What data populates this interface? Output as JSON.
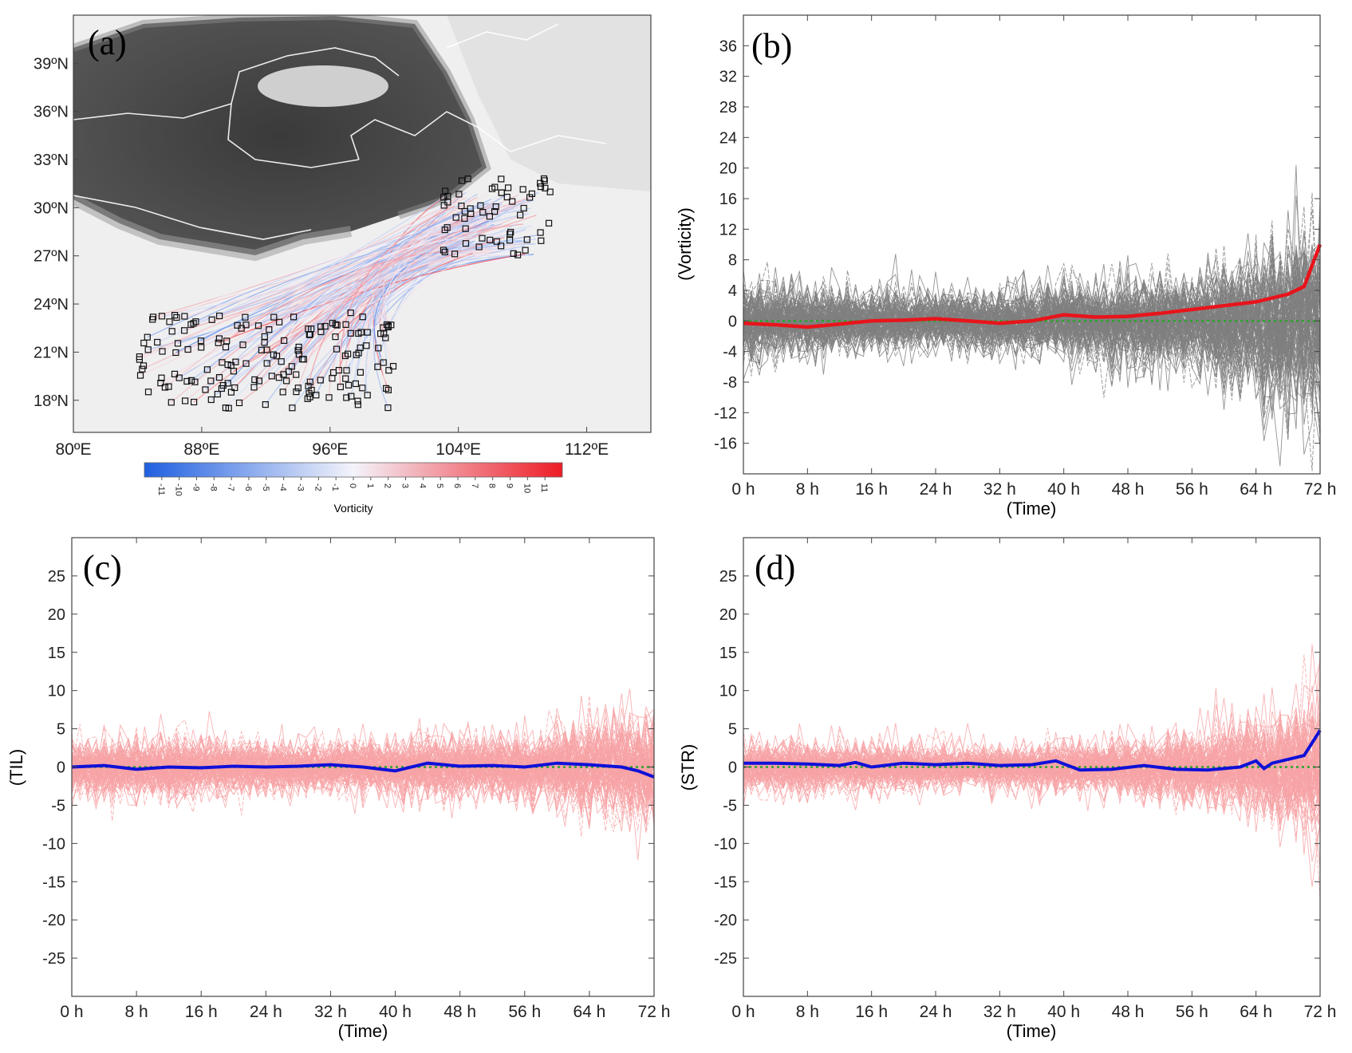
{
  "chart_data": [
    {
      "panel_id": "a",
      "type": "map",
      "panel_label": "(a)",
      "x_ticks": [
        "80ºE",
        "88ºE",
        "96ºE",
        "104ºE",
        "112ºE"
      ],
      "x_tick_values": [
        80,
        88,
        96,
        104,
        112
      ],
      "y_ticks": [
        "39ºN",
        "36ºN",
        "33ºN",
        "30ºN",
        "27ºN",
        "24ºN",
        "21ºN",
        "18ºN"
      ],
      "y_tick_values": [
        39,
        36,
        33,
        30,
        27,
        24,
        21,
        18
      ],
      "lon_range": [
        80,
        116
      ],
      "lat_range": [
        16,
        42
      ],
      "colorbar": {
        "label": "Vorticity",
        "ticks": [
          "-11",
          "-10",
          "-9",
          "-8",
          "-7",
          "-6",
          "-5",
          "-4",
          "-3",
          "-2",
          "-1",
          "0",
          "1",
          "2",
          "3",
          "4",
          "5",
          "6",
          "7",
          "8",
          "9",
          "10",
          "11"
        ],
        "range": [
          -12,
          12
        ],
        "neg_color": "#1f5fe0",
        "pos_color": "#ee1c25"
      }
    },
    {
      "panel_id": "b",
      "type": "line",
      "panel_label": "(b)",
      "xlabel": "(Time)",
      "ylabel": "(Vorticity)",
      "x_ticks": [
        "0 h",
        "8 h",
        "16 h",
        "24 h",
        "32 h",
        "40 h",
        "48 h",
        "56 h",
        "64 h",
        "72 h"
      ],
      "x_tick_values": [
        0,
        8,
        16,
        24,
        32,
        40,
        48,
        56,
        64,
        72
      ],
      "y_ticks": [
        "36",
        "32",
        "28",
        "24",
        "20",
        "16",
        "12",
        "8",
        "4",
        "0",
        "-4",
        "-8",
        "-12",
        "-16"
      ],
      "y_tick_values": [
        36,
        32,
        28,
        24,
        20,
        16,
        12,
        8,
        4,
        0,
        -4,
        -8,
        -12,
        -16
      ],
      "xlim": [
        0,
        72
      ],
      "ylim": [
        -20,
        40
      ],
      "ensemble_color": "#7f7f7f",
      "mean_color": "#e8141b",
      "zero_color": "#2aa52a",
      "mean": {
        "x": [
          0,
          4,
          8,
          12,
          16,
          20,
          24,
          28,
          32,
          36,
          40,
          44,
          48,
          52,
          56,
          60,
          64,
          68,
          70,
          72
        ],
        "y": [
          -0.3,
          -0.5,
          -0.8,
          -0.4,
          0.0,
          0.1,
          0.3,
          0.0,
          -0.3,
          0.0,
          0.8,
          0.5,
          0.6,
          1.0,
          1.5,
          2.0,
          2.5,
          3.5,
          4.5,
          10.0
        ]
      }
    },
    {
      "panel_id": "c",
      "type": "line",
      "panel_label": "(c)",
      "xlabel": "(Time)",
      "ylabel": "(TIL)",
      "x_ticks": [
        "0 h",
        "8 h",
        "16 h",
        "24 h",
        "32 h",
        "40 h",
        "48 h",
        "56 h",
        "64 h",
        "72 h"
      ],
      "x_tick_values": [
        0,
        8,
        16,
        24,
        32,
        40,
        48,
        56,
        64,
        72
      ],
      "y_ticks": [
        "25",
        "20",
        "15",
        "10",
        "5",
        "0",
        "-5",
        "-10",
        "-15",
        "-20",
        "-25"
      ],
      "y_tick_values": [
        25,
        20,
        15,
        10,
        5,
        0,
        -5,
        -10,
        -15,
        -20,
        -25
      ],
      "xlim": [
        0,
        72
      ],
      "ylim": [
        -30,
        30
      ],
      "ensemble_color": "#f7a3a6",
      "mean_color": "#1010d8",
      "zero_color": "#2aa52a",
      "mean": {
        "x": [
          0,
          4,
          8,
          12,
          16,
          20,
          24,
          28,
          32,
          36,
          40,
          44,
          48,
          52,
          56,
          60,
          64,
          68,
          70,
          72
        ],
        "y": [
          0.0,
          0.2,
          -0.3,
          0.0,
          -0.1,
          0.1,
          0.0,
          0.1,
          0.3,
          0.0,
          -0.5,
          0.5,
          0.1,
          0.2,
          0.0,
          0.5,
          0.3,
          0.0,
          -0.5,
          -1.3
        ]
      }
    },
    {
      "panel_id": "d",
      "type": "line",
      "panel_label": "(d)",
      "xlabel": "(Time)",
      "ylabel": "(STR)",
      "x_ticks": [
        "0 h",
        "8 h",
        "16 h",
        "24 h",
        "32 h",
        "40 h",
        "48 h",
        "56 h",
        "64 h",
        "72 h"
      ],
      "x_tick_values": [
        0,
        8,
        16,
        24,
        32,
        40,
        48,
        56,
        64,
        72
      ],
      "y_ticks": [
        "25",
        "20",
        "15",
        "10",
        "5",
        "0",
        "-5",
        "-10",
        "-15",
        "-20",
        "-25"
      ],
      "y_tick_values": [
        25,
        20,
        15,
        10,
        5,
        0,
        -5,
        -10,
        -15,
        -20,
        -25
      ],
      "xlim": [
        0,
        72
      ],
      "ylim": [
        -30,
        30
      ],
      "ensemble_color": "#f7a3a6",
      "mean_color": "#1010d8",
      "zero_color": "#2aa52a",
      "mean": {
        "x": [
          0,
          4,
          8,
          12,
          14,
          16,
          20,
          24,
          28,
          32,
          36,
          39,
          42,
          46,
          50,
          54,
          58,
          62,
          64,
          65,
          66,
          68,
          70,
          72
        ],
        "y": [
          0.5,
          0.5,
          0.4,
          0.2,
          0.6,
          0.0,
          0.5,
          0.3,
          0.5,
          0.2,
          0.3,
          0.8,
          -0.4,
          -0.3,
          0.2,
          -0.3,
          -0.4,
          0.0,
          0.8,
          -0.2,
          0.5,
          1.0,
          1.5,
          4.8
        ]
      }
    }
  ]
}
